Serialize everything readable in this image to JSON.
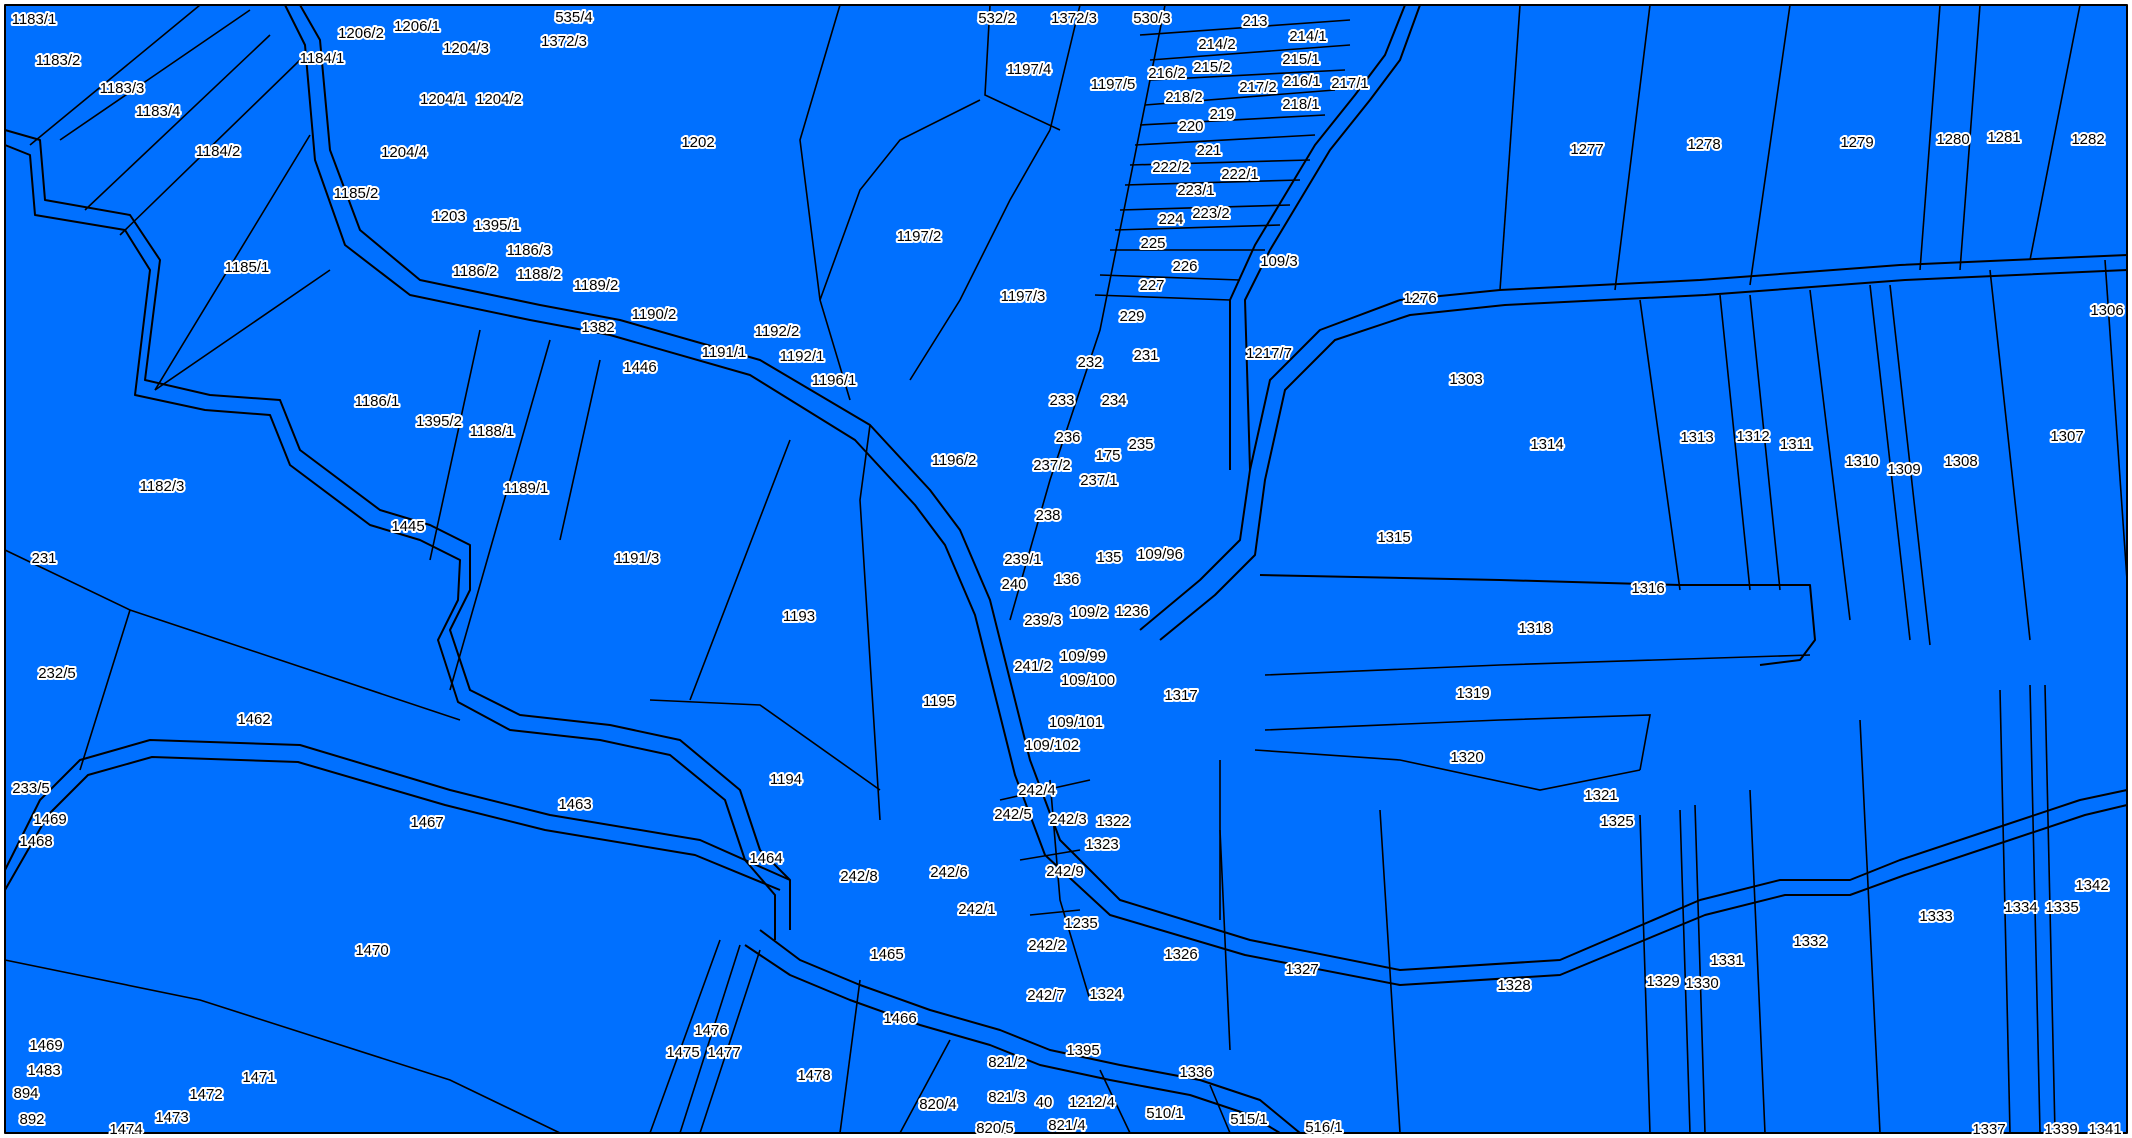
{
  "colors": {
    "parcel_fill": "#0070FF",
    "boundary": "#000000",
    "label_halo": "#FFFFFF"
  },
  "parcels": [
    "1183/1",
    "1183/2",
    "1183/3",
    "1183/4",
    "1184/1",
    "1184/2",
    "1185/2",
    "1185/1",
    "1186/1",
    "1182/3",
    "1206/2",
    "1206/1",
    "1204/3",
    "1204/1",
    "1204/2",
    "1204/4",
    "1203",
    "1395/1",
    "1186/3",
    "1186/2",
    "1188/2",
    "1189/2",
    "1190/2",
    "1382",
    "1446",
    "1191/1",
    "1192/2",
    "1192/1",
    "1196/1",
    "1395/2",
    "1188/1",
    "1189/1",
    "1445",
    "231",
    "1191/3",
    "232/5",
    "1462",
    "1193",
    "1194",
    "1195",
    "1196/2",
    "1197/2",
    "1197/3",
    "1197/4",
    "1197/5",
    "1202",
    "535/4",
    "1372/3",
    "532/2",
    "1372/3",
    "530/3",
    "213",
    "214/2",
    "214/1",
    "215/2",
    "215/1",
    "216/2",
    "216/1",
    "217/2",
    "217/1",
    "218/2",
    "218/1",
    "219",
    "220",
    "221",
    "222/2",
    "222/1",
    "223/1",
    "223/2",
    "224",
    "225",
    "226",
    "227",
    "229",
    "232",
    "231",
    "233",
    "234",
    "236",
    "175",
    "235",
    "237/2",
    "237/1",
    "238",
    "239/1",
    "135",
    "109/96",
    "240",
    "136",
    "239/3",
    "109/2",
    "1236",
    "241/2",
    "109/99",
    "109/100",
    "109/101",
    "1317",
    "109/102",
    "109/3",
    "1217/7",
    "1276",
    "1277",
    "1278",
    "1279",
    "1280",
    "1281",
    "1282",
    "1306",
    "1303",
    "1314",
    "1313",
    "1312",
    "1311",
    "1310",
    "1309",
    "1308",
    "1307",
    "1315",
    "1316",
    "1318",
    "1319",
    "1320",
    "1321",
    "1325",
    "233/5",
    "1469",
    "1468",
    "1467",
    "1463",
    "1464",
    "242/4",
    "242/5",
    "242/3",
    "1322",
    "1323",
    "242/8",
    "242/6",
    "242/9",
    "242/1",
    "1235",
    "242/2",
    "242/7",
    "1324",
    "1326",
    "1327",
    "1328",
    "1329",
    "1330",
    "1331",
    "1332",
    "1333",
    "1334",
    "1335",
    "1342",
    "1470",
    "1465",
    "1466",
    "1476",
    "1475",
    "1477",
    "1478",
    "1469",
    "1483",
    "1471",
    "1472",
    "1473",
    "1474",
    "894",
    "892",
    "821/2",
    "821/3",
    "820/4",
    "40",
    "1212/4",
    "1395",
    "1336",
    "510/1",
    "515/1",
    "516/1",
    "820/5",
    "821/4",
    "1337",
    "1339",
    "1341"
  ]
}
